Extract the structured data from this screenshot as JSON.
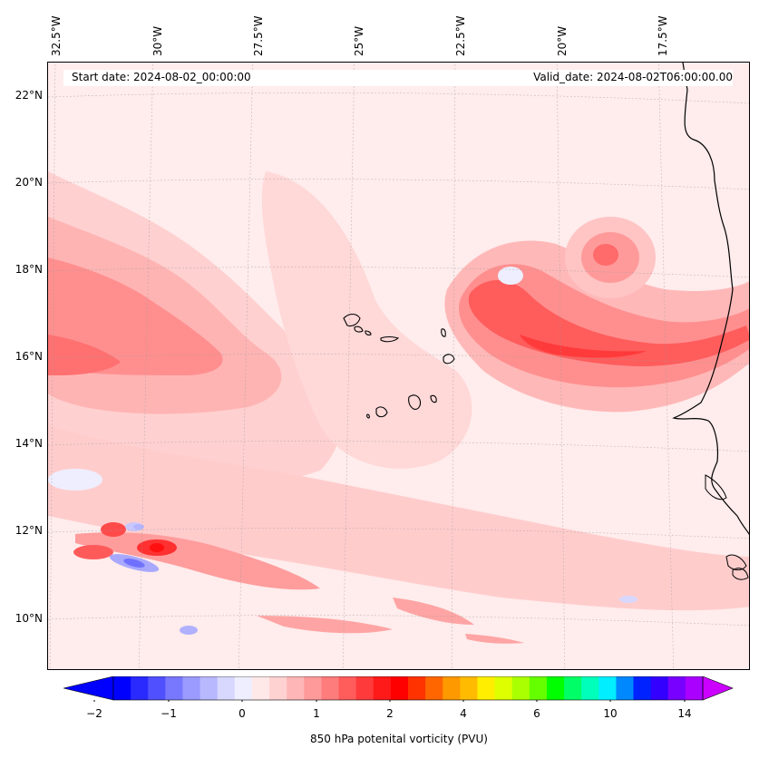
{
  "info": {
    "start_date": "Start date: 2024-08-02_00:00:00",
    "valid_date": "Valid_date: 2024-08-02T06:00:00.00"
  },
  "axes": {
    "longitude_labels": [
      "32.5°W",
      "30°W",
      "27.5°W",
      "25°W",
      "22.5°W",
      "20°W",
      "17.5°W"
    ],
    "latitude_labels": [
      "22°N",
      "20°N",
      "18°N",
      "16°N",
      "14°N",
      "12°N",
      "10°N"
    ]
  },
  "colorbar": {
    "label": "850 hPa potenital vorticity (PVU)",
    "tick_labels": [
      "−2",
      "−1",
      "0",
      "1",
      "2",
      "4",
      "6",
      "10",
      "14"
    ],
    "colors": [
      "#0000ff",
      "#2a2aff",
      "#5050ff",
      "#7878ff",
      "#9a9aff",
      "#b8b8ff",
      "#d8d8ff",
      "#eeeeff",
      "#ffe8e8",
      "#ffd2d2",
      "#ffb6b6",
      "#ff9a9a",
      "#ff7c7c",
      "#ff5c5c",
      "#ff3a3a",
      "#ff1a1a",
      "#ff0000",
      "#ff3300",
      "#ff6600",
      "#ff9900",
      "#ffbb00",
      "#ffee00",
      "#ddff00",
      "#aaff00",
      "#66ff00",
      "#00ff00",
      "#00ff66",
      "#00ffbb",
      "#00eeff",
      "#0088ff",
      "#0022ff",
      "#3300ff",
      "#7700ff",
      "#aa00ff"
    ],
    "extend_low_color": "#0000ff",
    "extend_high_color": "#cc00ff"
  },
  "map": {
    "background_color": "#ffecec",
    "coastline_color": "#000000"
  }
}
